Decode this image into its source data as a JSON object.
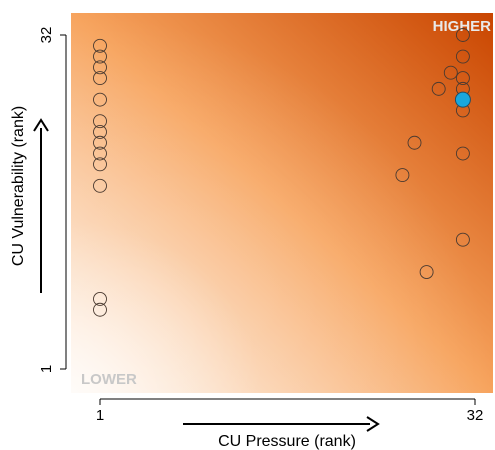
{
  "chart_data": {
    "type": "scatter",
    "title": "",
    "xlabel": "CU Pressure (rank)",
    "ylabel": "CU Vulnerability (rank)",
    "xlim": [
      1,
      32
    ],
    "ylim": [
      1,
      32
    ],
    "x_ticks": [
      "1",
      "32"
    ],
    "y_ticks": [
      "1",
      "32"
    ],
    "grid": false,
    "background": "orange gradient, light at lower-left to dark at upper-right",
    "corner_labels": {
      "higher": "HIGHER",
      "lower": "LOWER"
    },
    "colors": {
      "gradient_low": "#fdf1e6",
      "gradient_mid": "#f7a45e",
      "gradient_high": "#c94500",
      "highlight_point": "#1aa7dd",
      "point_outline": "#4a3a30",
      "corner_higher": "#e9e9e9",
      "corner_lower": "#c8c8c8"
    },
    "points": [
      {
        "x": 1,
        "y": 31
      },
      {
        "x": 1,
        "y": 30
      },
      {
        "x": 1,
        "y": 29
      },
      {
        "x": 1,
        "y": 28
      },
      {
        "x": 1,
        "y": 26
      },
      {
        "x": 1,
        "y": 24
      },
      {
        "x": 1,
        "y": 23
      },
      {
        "x": 1,
        "y": 22
      },
      {
        "x": 1,
        "y": 21
      },
      {
        "x": 1,
        "y": 20
      },
      {
        "x": 1,
        "y": 18
      },
      {
        "x": 1,
        "y": 7.5
      },
      {
        "x": 1,
        "y": 6.5
      },
      {
        "x": 26,
        "y": 19
      },
      {
        "x": 27,
        "y": 22
      },
      {
        "x": 28,
        "y": 10
      },
      {
        "x": 29,
        "y": 27
      },
      {
        "x": 30,
        "y": 28.5
      },
      {
        "x": 31,
        "y": 32
      },
      {
        "x": 31,
        "y": 30
      },
      {
        "x": 31,
        "y": 28
      },
      {
        "x": 31,
        "y": 27
      },
      {
        "x": 31,
        "y": 25
      },
      {
        "x": 31,
        "y": 21
      },
      {
        "x": 31,
        "y": 13
      }
    ],
    "highlight": {
      "x": 31,
      "y": 26
    }
  }
}
